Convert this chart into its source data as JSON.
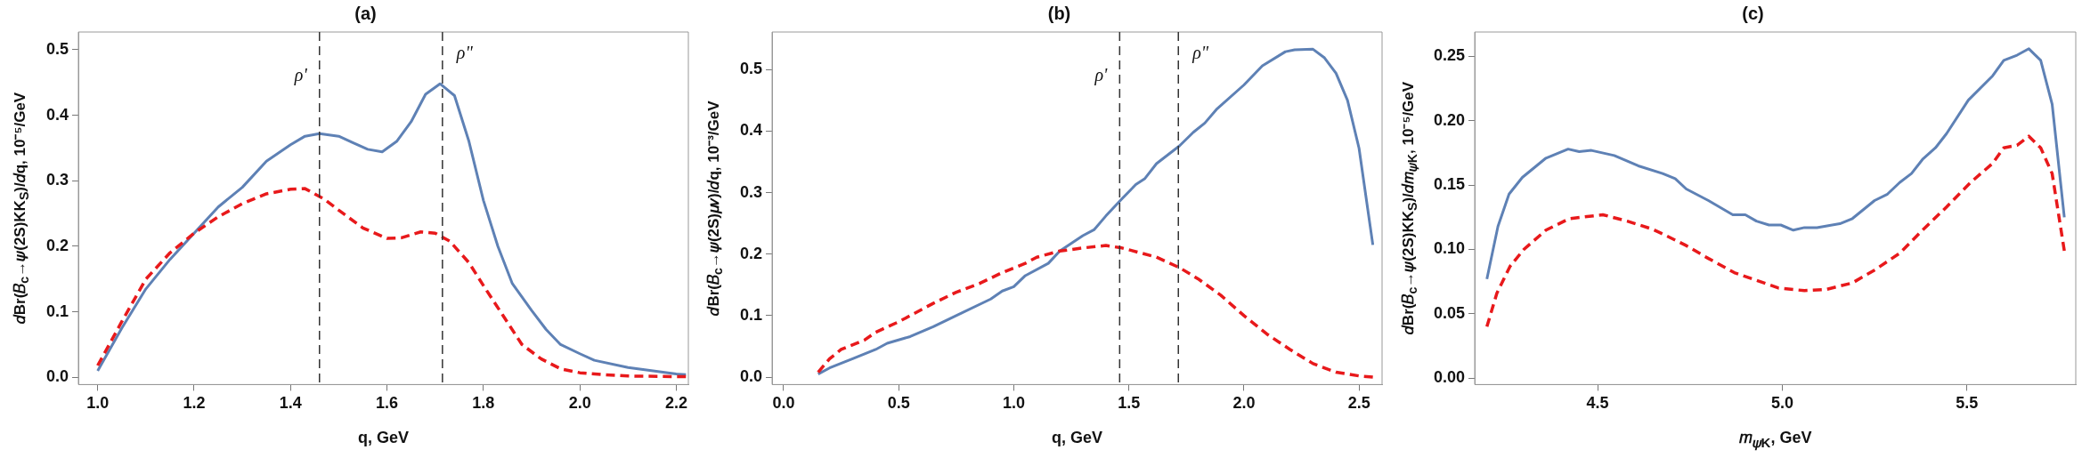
{
  "chart_data": [
    {
      "type": "line",
      "title": "(a)",
      "xlabel": "q, GeV",
      "ylabel": "𝑑Br(𝐵$_{c}$→𝜓(2S)KK$_{S}$)/𝑑q, 10⁻⁵/GeV",
      "xlim": [
        0.96,
        2.225
      ],
      "ylim": [
        -0.011,
        0.527
      ],
      "xticks": [
        {
          "value": 1,
          "label": "1.0"
        },
        1.2,
        1.4,
        1.6,
        1.8,
        {
          "value": 2,
          "label": "2.0"
        },
        2.2
      ],
      "yticks": [
        {
          "value": 0,
          "label": "0.0"
        },
        0.1,
        0.2,
        0.3,
        0.4,
        0.5
      ],
      "ref_lines": [
        {
          "axis": "x",
          "value": 1.46,
          "label": "ρ'",
          "color": "#333333",
          "line_style": "dashed"
        },
        {
          "axis": "x",
          "value": 1.715,
          "label": "ρ\"",
          "color": "#333333",
          "line_style": "dashed"
        }
      ],
      "series": [
        {
          "color": "#5e81b5",
          "line_style": "solid",
          "x": [
            1.0,
            1.05,
            1.1,
            1.15,
            1.2,
            1.25,
            1.3,
            1.35,
            1.4,
            1.43,
            1.46,
            1.5,
            1.53,
            1.56,
            1.59,
            1.62,
            1.65,
            1.68,
            1.71,
            1.74,
            1.77,
            1.8,
            1.83,
            1.86,
            1.9,
            1.93,
            1.96,
            2.0,
            2.03,
            2.1,
            2.2,
            2.22
          ],
          "values": [
            0.01,
            0.075,
            0.135,
            0.18,
            0.22,
            0.26,
            0.29,
            0.33,
            0.355,
            0.368,
            0.372,
            0.368,
            0.358,
            0.348,
            0.344,
            0.36,
            0.39,
            0.432,
            0.448,
            0.43,
            0.36,
            0.27,
            0.2,
            0.143,
            0.102,
            0.073,
            0.05,
            0.036,
            0.026,
            0.015,
            0.005,
            0.004
          ]
        },
        {
          "color": "#e8191b",
          "line_style": "dashed",
          "x": [
            1.0,
            1.05,
            1.1,
            1.15,
            1.2,
            1.25,
            1.3,
            1.35,
            1.4,
            1.43,
            1.47,
            1.5,
            1.55,
            1.6,
            1.63,
            1.67,
            1.7,
            1.73,
            1.77,
            1.8,
            1.84,
            1.88,
            1.92,
            1.96,
            2.0,
            2.05,
            2.1,
            2.22
          ],
          "values": [
            0.018,
            0.085,
            0.15,
            0.19,
            0.22,
            0.245,
            0.265,
            0.28,
            0.287,
            0.288,
            0.272,
            0.255,
            0.228,
            0.212,
            0.213,
            0.222,
            0.22,
            0.208,
            0.175,
            0.14,
            0.095,
            0.05,
            0.028,
            0.013,
            0.007,
            0.004,
            0.002,
            0.001
          ]
        }
      ]
    },
    {
      "type": "line",
      "title": "(b)",
      "xlabel": "q, GeV",
      "ylabel": "𝑑Br(𝐵$_{c}$→𝜓(2S)𝜇𝜈)/𝑑q, 10⁻³/GeV",
      "xlim": [
        -0.05,
        2.6
      ],
      "ylim": [
        -0.012,
        0.561
      ],
      "xticks": [
        {
          "value": 0,
          "label": "0.0"
        },
        0.5,
        {
          "value": 1,
          "label": "1.0"
        },
        1.5,
        {
          "value": 2,
          "label": "2.0"
        },
        2.5
      ],
      "yticks": [
        {
          "value": 0,
          "label": "0.0"
        },
        0.1,
        0.2,
        0.3,
        0.4,
        0.5
      ],
      "ref_lines": [
        {
          "axis": "x",
          "value": 1.46,
          "label": "ρ'",
          "color": "#333333",
          "line_style": "dashed"
        },
        {
          "axis": "x",
          "value": 1.715,
          "label": "ρ\"",
          "color": "#333333",
          "line_style": "dashed"
        }
      ],
      "series": [
        {
          "color": "#5e81b5",
          "line_style": "solid",
          "x": [
            0.15,
            0.2,
            0.3,
            0.4,
            0.45,
            0.55,
            0.65,
            0.75,
            0.9,
            0.95,
            1.0,
            1.05,
            1.15,
            1.2,
            1.3,
            1.35,
            1.4,
            1.47,
            1.53,
            1.57,
            1.62,
            1.72,
            1.78,
            1.83,
            1.88,
            2.0,
            2.08,
            2.18,
            2.22,
            2.3,
            2.35,
            2.4,
            2.45,
            2.5,
            2.56
          ],
          "values": [
            0.005,
            0.015,
            0.03,
            0.045,
            0.055,
            0.066,
            0.082,
            0.1,
            0.127,
            0.14,
            0.147,
            0.165,
            0.185,
            0.205,
            0.23,
            0.24,
            0.262,
            0.29,
            0.313,
            0.323,
            0.347,
            0.376,
            0.398,
            0.413,
            0.435,
            0.475,
            0.506,
            0.529,
            0.532,
            0.533,
            0.519,
            0.494,
            0.45,
            0.372,
            0.215
          ]
        },
        {
          "color": "#e8191b",
          "line_style": "dashed",
          "x": [
            0.15,
            0.2,
            0.25,
            0.35,
            0.4,
            0.5,
            0.55,
            0.65,
            0.75,
            0.85,
            0.95,
            1.05,
            1.1,
            1.2,
            1.3,
            1.4,
            1.47,
            1.55,
            1.62,
            1.72,
            1.8,
            1.9,
            2.0,
            2.1,
            2.2,
            2.3,
            2.4,
            2.5,
            2.56
          ],
          "values": [
            0.008,
            0.03,
            0.045,
            0.06,
            0.073,
            0.09,
            0.1,
            0.12,
            0.138,
            0.152,
            0.17,
            0.185,
            0.195,
            0.205,
            0.21,
            0.214,
            0.21,
            0.202,
            0.195,
            0.178,
            0.16,
            0.133,
            0.1,
            0.07,
            0.045,
            0.022,
            0.008,
            0.002,
            0.0
          ]
        }
      ]
    },
    {
      "type": "line",
      "title": "(c)",
      "xlabel": "𝑚$_{𝜓K}$, GeV",
      "ylabel": "𝑑Br(𝐵$_{c}$→𝜓(2S)KK$_{S}$)/𝑑𝑚$_{𝜓K}$, 10⁻⁵/GeV",
      "xlim": [
        4.167,
        5.795
      ],
      "ylim": [
        -0.005,
        0.269
      ],
      "xticks": [
        4.5,
        {
          "value": 5,
          "label": "5.0"
        },
        5.5
      ],
      "yticks": [
        {
          "value": 0,
          "label": "0.00"
        },
        0.05,
        {
          "value": 0.1,
          "label": "0.10"
        },
        0.15,
        {
          "value": 0.2,
          "label": "0.20"
        },
        0.25
      ],
      "series": [
        {
          "color": "#5e81b5",
          "line_style": "solid",
          "x": [
            4.2,
            4.23,
            4.26,
            4.296,
            4.36,
            4.42,
            4.45,
            4.483,
            4.545,
            4.61,
            4.676,
            4.71,
            4.74,
            4.8,
            4.866,
            4.9,
            4.93,
            4.964,
            4.996,
            5.03,
            5.06,
            5.094,
            5.156,
            5.19,
            5.25,
            5.285,
            5.318,
            5.35,
            5.38,
            5.415,
            5.445,
            5.504,
            5.57,
            5.6,
            5.636,
            5.668,
            5.7,
            5.731,
            5.764
          ],
          "values": [
            0.077,
            0.118,
            0.143,
            0.156,
            0.171,
            0.178,
            0.176,
            0.177,
            0.173,
            0.165,
            0.159,
            0.155,
            0.147,
            0.138,
            0.127,
            0.127,
            0.122,
            0.119,
            0.119,
            0.115,
            0.117,
            0.117,
            0.12,
            0.124,
            0.138,
            0.143,
            0.152,
            0.159,
            0.17,
            0.179,
            0.19,
            0.216,
            0.235,
            0.247,
            0.251,
            0.256,
            0.247,
            0.213,
            0.125
          ]
        },
        {
          "color": "#e8191b",
          "line_style": "dashed",
          "x": [
            4.2,
            4.227,
            4.263,
            4.3,
            4.36,
            4.424,
            4.455,
            4.514,
            4.58,
            4.646,
            4.677,
            4.74,
            4.8,
            4.87,
            4.93,
            4.99,
            5.06,
            5.12,
            5.19,
            5.25,
            5.318,
            5.38,
            5.445,
            5.51,
            5.57,
            5.6,
            5.636,
            5.668,
            5.7,
            5.731,
            5.764
          ],
          "values": [
            0.04,
            0.066,
            0.087,
            0.1,
            0.115,
            0.124,
            0.125,
            0.127,
            0.122,
            0.116,
            0.112,
            0.103,
            0.093,
            0.082,
            0.076,
            0.07,
            0.068,
            0.069,
            0.074,
            0.084,
            0.097,
            0.115,
            0.133,
            0.152,
            0.167,
            0.179,
            0.181,
            0.188,
            0.179,
            0.159,
            0.099
          ]
        }
      ]
    }
  ]
}
